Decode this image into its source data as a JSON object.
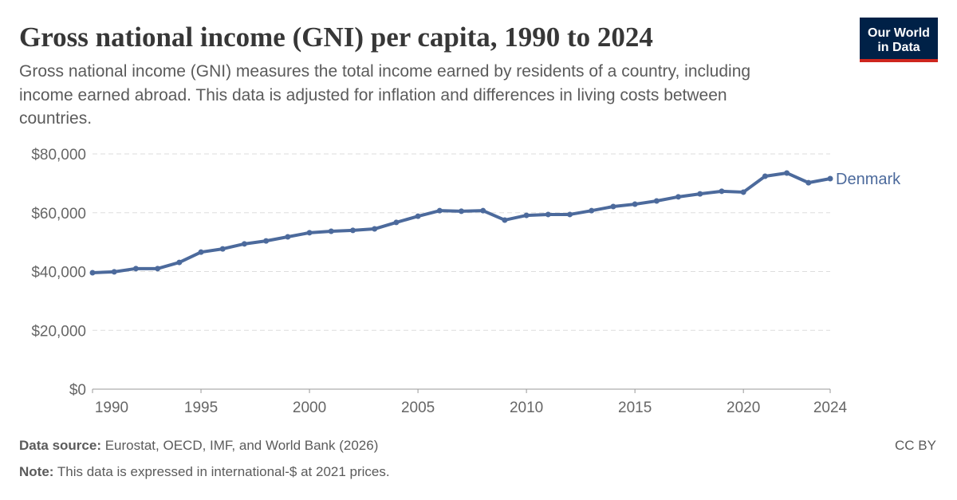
{
  "chart_data": {
    "type": "line",
    "title": "Gross national income (GNI) per capita, 1990 to 2024",
    "subtitle": [
      "Gross national income (GNI) measures the total income earned by residents of a country, including",
      "income earned abroad. This data is adjusted for inflation and differences in living costs between",
      "countries."
    ],
    "x": [
      1990,
      1991,
      1992,
      1993,
      1994,
      1995,
      1996,
      1997,
      1998,
      1999,
      2000,
      2001,
      2002,
      2003,
      2004,
      2005,
      2006,
      2007,
      2008,
      2009,
      2010,
      2011,
      2012,
      2013,
      2014,
      2015,
      2016,
      2017,
      2018,
      2019,
      2020,
      2021,
      2022,
      2023,
      2024
    ],
    "series": [
      {
        "name": "Denmark",
        "color": "#4c6a9c",
        "values": [
          39600,
          39900,
          41000,
          41000,
          43100,
          46600,
          47700,
          49400,
          50400,
          51800,
          53200,
          53700,
          54000,
          54500,
          56700,
          58800,
          60700,
          60500,
          60700,
          57500,
          59100,
          59400,
          59400,
          60700,
          62100,
          62900,
          64000,
          65400,
          66400,
          67300,
          67000,
          72400,
          73500,
          70200,
          71600
        ]
      }
    ],
    "xlim": [
      1990,
      2024
    ],
    "xticks": [
      1990,
      1995,
      2000,
      2005,
      2010,
      2015,
      2020,
      2024
    ],
    "ylim": [
      0,
      80000
    ],
    "yticks": [
      {
        "value": 0,
        "label": "$0"
      },
      {
        "value": 20000,
        "label": "$20,000"
      },
      {
        "value": 40000,
        "label": "$40,000"
      },
      {
        "value": 60000,
        "label": "$60,000"
      },
      {
        "value": 80000,
        "label": "$80,000"
      }
    ],
    "grid": true,
    "source_label": "Data source:",
    "source": "Eurostat, OECD, IMF, and World Bank (2026)",
    "note_label": "Note:",
    "note": "This data is expressed in international-$ at 2021 prices.",
    "license": "CC BY",
    "logo": [
      "Our World",
      "in Data"
    ]
  }
}
